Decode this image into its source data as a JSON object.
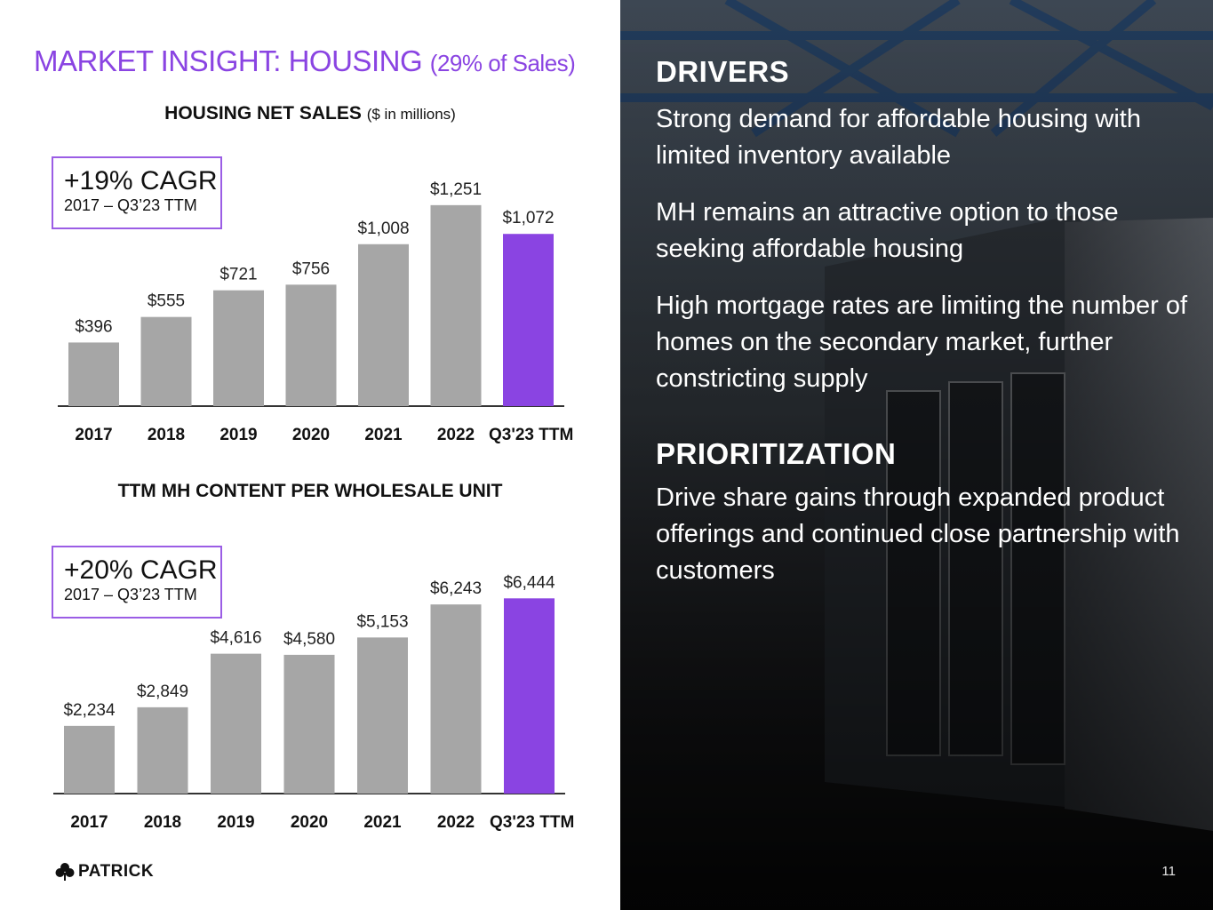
{
  "page": {
    "title": "MARKET INSIGHT: HOUSING",
    "title_sub": "(29% of Sales)",
    "number": "11",
    "accent_color": "#8a44e2",
    "logo_text": "PATRICK",
    "logo_icon": "clover-icon"
  },
  "chart_data": [
    {
      "type": "bar",
      "title": "HOUSING NET SALES",
      "title_unit": "($ in millions)",
      "categories": [
        "2017",
        "2018",
        "2019",
        "2020",
        "2021",
        "2022",
        "Q3'23 TTM"
      ],
      "values": [
        396,
        555,
        721,
        756,
        1008,
        1251,
        1072
      ],
      "labels": [
        "$396",
        "$555",
        "$721",
        "$756",
        "$1,008",
        "$1,251",
        "$1,072"
      ],
      "colors": [
        "#a6a6a6",
        "#a6a6a6",
        "#a6a6a6",
        "#a6a6a6",
        "#a6a6a6",
        "#a6a6a6",
        "#8a44e2"
      ],
      "callout": {
        "headline": "+19% CAGR",
        "period": "2017 – Q3’23 TTM"
      },
      "ylim": [
        0,
        1300
      ],
      "grid": false,
      "xlabel": "",
      "ylabel": ""
    },
    {
      "type": "bar",
      "title": "TTM MH CONTENT PER WHOLESALE UNIT",
      "categories": [
        "2017",
        "2018",
        "2019",
        "2020",
        "2021",
        "2022",
        "Q3'23 TTM"
      ],
      "values": [
        2234,
        2849,
        4616,
        4580,
        5153,
        6243,
        6444
      ],
      "labels": [
        "$2,234",
        "$2,849",
        "$4,616",
        "$4,580",
        "$5,153",
        "$6,243",
        "$6,444"
      ],
      "colors": [
        "#a6a6a6",
        "#a6a6a6",
        "#a6a6a6",
        "#a6a6a6",
        "#a6a6a6",
        "#a6a6a6",
        "#8a44e2"
      ],
      "callout": {
        "headline": "+20% CAGR",
        "period": "2017 – Q3’23 TTM"
      },
      "ylim": [
        0,
        6600
      ],
      "grid": false,
      "xlabel": "",
      "ylabel": ""
    }
  ],
  "right_panel": {
    "drivers_heading": "DRIVERS",
    "drivers": [
      "Strong demand for affordable housing with limited inventory available",
      "MH remains an attractive option to those seeking affordable housing",
      "High mortgage rates are limiting the number of homes on the secondary market, further constricting supply"
    ],
    "prioritization_heading": "PRIORITIZATION",
    "prioritization": "Drive share gains through expanded product offerings and continued close partnership with customers"
  }
}
